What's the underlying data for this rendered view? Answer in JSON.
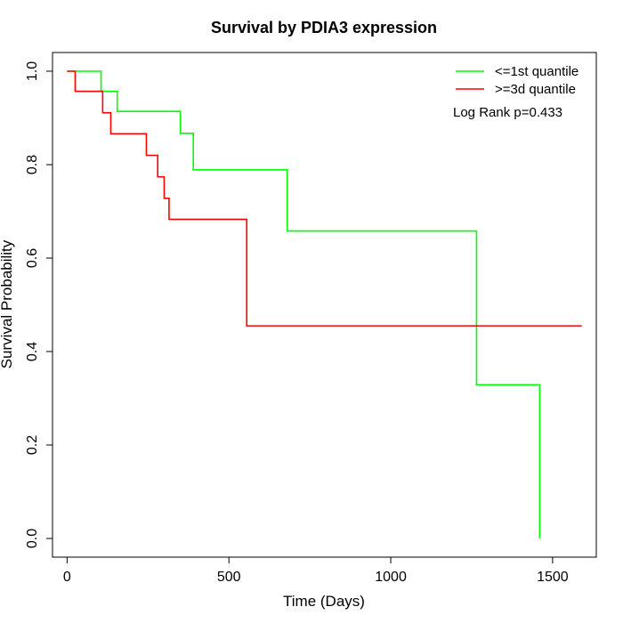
{
  "chart_data": {
    "type": "line",
    "title": "Survival by PDIA3 expression",
    "xlabel": "Time (Days)",
    "ylabel": "Survival Probability",
    "xlim": [
      -45,
      1635
    ],
    "ylim": [
      -0.04,
      1.04
    ],
    "x_ticks": [
      0,
      500,
      1000,
      1500
    ],
    "y_ticks": [
      0.0,
      0.2,
      0.4,
      0.6,
      0.8,
      1.0
    ],
    "x_tick_labels": [
      "0",
      "500",
      "1000",
      "1500"
    ],
    "y_tick_labels": [
      "0.0",
      "0.2",
      "0.4",
      "0.6",
      "0.8",
      "1.0"
    ],
    "legend_position": "top-right",
    "annotation": "Log Rank p=0.433",
    "series": [
      {
        "name": "<=1st quantile",
        "color": "#00ff00",
        "step": "post",
        "x": [
          0,
          105,
          155,
          350,
          390,
          680,
          1265,
          1460
        ],
        "y": [
          1.0,
          0.957,
          0.914,
          0.867,
          0.789,
          0.658,
          0.329,
          0.0
        ]
      },
      {
        "name": ">=3d quantile",
        "color": "#ff0000",
        "step": "post",
        "x": [
          0,
          25,
          110,
          135,
          245,
          280,
          300,
          315,
          555,
          1590
        ],
        "y": [
          1.0,
          0.957,
          0.911,
          0.866,
          0.82,
          0.774,
          0.728,
          0.683,
          0.455,
          0.455
        ]
      }
    ]
  }
}
